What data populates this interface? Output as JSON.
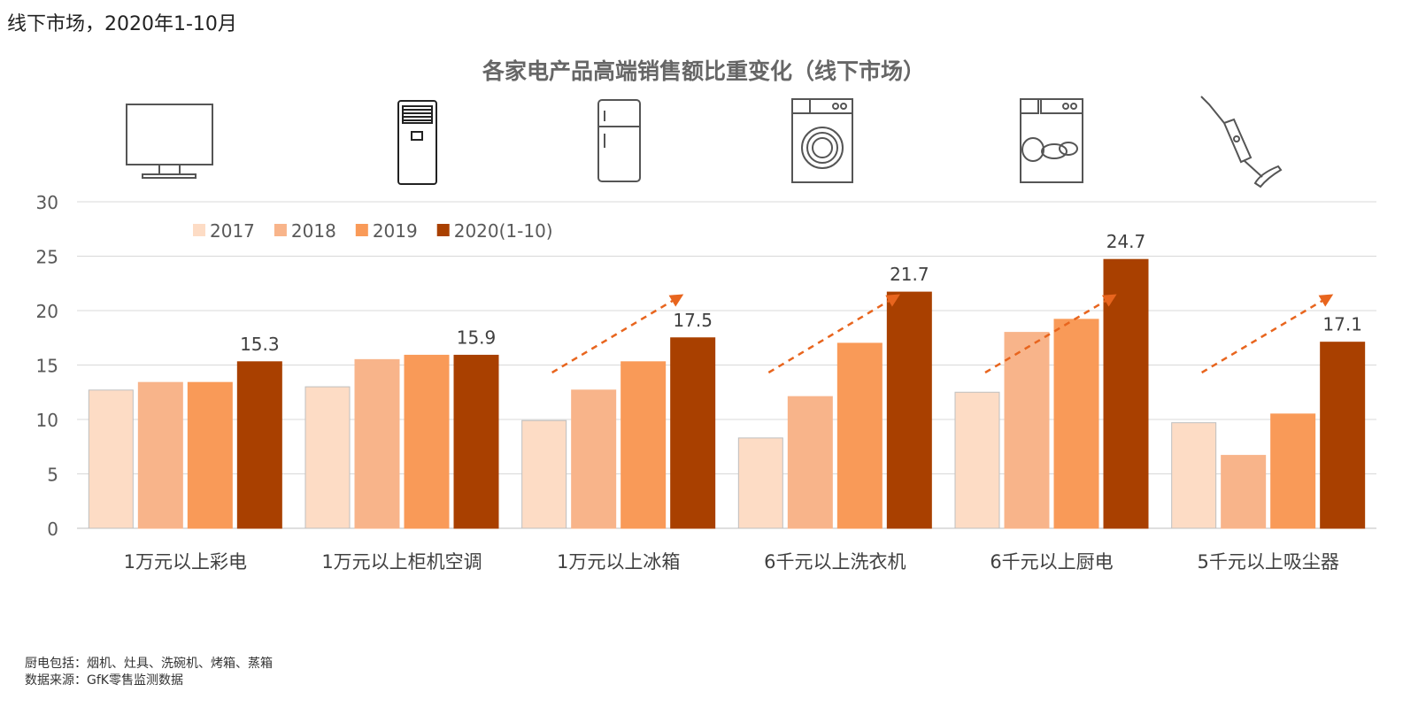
{
  "header": {
    "subtitle": "线下市场，2020年1-10月"
  },
  "footer": {
    "note": "厨电包括：烟机、灶具、洗碗机、烤箱、蒸箱",
    "source": "数据来源：GfK零售监测数据"
  },
  "icons": [
    "tv-icon",
    "air-conditioner-icon",
    "refrigerator-icon",
    "washing-machine-icon",
    "dishwasher-icon",
    "vacuum-cleaner-icon"
  ],
  "colors": {
    "2017": "#FDDCC5",
    "2018": "#F8B48A",
    "2019": "#F99A58",
    "2020(1-10)": "#A94000",
    "trend_arrow": "#E8651E",
    "grid": "#D9D9D9"
  },
  "chart_data": {
    "type": "bar",
    "title": "各家电产品高端销售额比重变化（线下市场）",
    "categories": [
      "1万元以上彩电",
      "1万元以上柜机空调",
      "1万元以上冰箱",
      "6千元以上洗衣机",
      "6千元以上厨电",
      "5千元以上吸尘器"
    ],
    "series": [
      {
        "name": "2017",
        "values": [
          12.7,
          13.0,
          9.9,
          8.3,
          12.5,
          9.7
        ]
      },
      {
        "name": "2018",
        "values": [
          13.4,
          15.5,
          12.7,
          12.1,
          18.0,
          6.7
        ]
      },
      {
        "name": "2019",
        "values": [
          13.4,
          15.9,
          15.3,
          17.0,
          19.2,
          10.5
        ]
      },
      {
        "name": "2020(1-10)",
        "values": [
          15.3,
          15.9,
          17.5,
          21.7,
          24.7,
          17.1
        ]
      }
    ],
    "data_labels": [
      "15.3",
      "15.9",
      "17.5",
      "21.7",
      "24.7",
      "17.1"
    ],
    "ylim": [
      0,
      30
    ],
    "yticks": [
      0,
      5,
      10,
      15,
      20,
      25,
      30
    ],
    "grid": true,
    "legend_position": "top-left",
    "trend_arrows_on": [
      "1万元以上冰箱",
      "6千元以上洗衣机",
      "6千元以上厨电",
      "5千元以上吸尘器"
    ]
  }
}
